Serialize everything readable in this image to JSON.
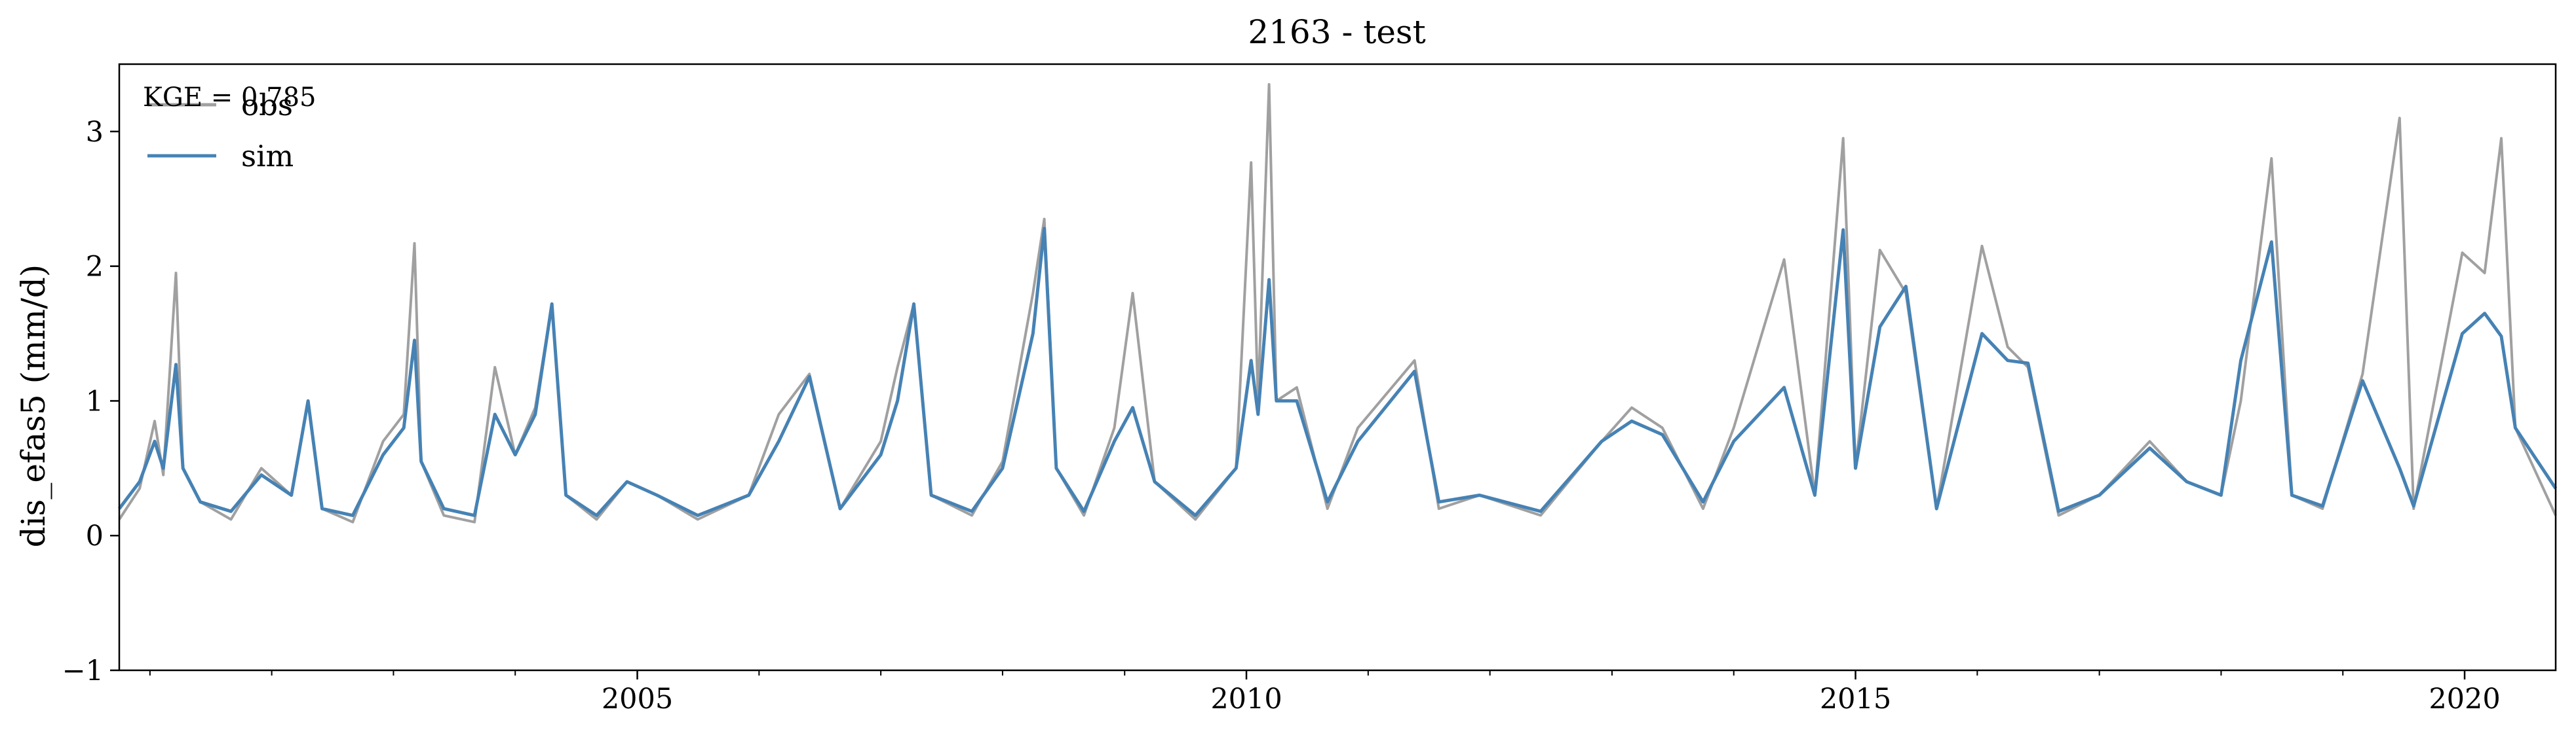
{
  "chart_data": {
    "type": "line",
    "title": "2163 - test",
    "xlabel": "",
    "ylabel": "dis_efas5 (mm/d)",
    "xlim": [
      "2000-10-01",
      "2020-09-30"
    ],
    "ylim": [
      -1,
      3.5
    ],
    "y_ticks": [
      "−1",
      "0",
      "1",
      "2",
      "3"
    ],
    "x_ticks": [
      "2005",
      "2010",
      "2015",
      "2020"
    ],
    "grid": false,
    "legend": {
      "placement": "top-left",
      "entries": [
        "obs",
        "sim"
      ]
    },
    "annotation": "KGE = 0.785",
    "series": [
      {
        "name": "obs",
        "color": "#a0a0a0",
        "points": [
          [
            "2000-10-01",
            0.12
          ],
          [
            "2000-12-01",
            0.35
          ],
          [
            "2001-01-15",
            0.85
          ],
          [
            "2001-02-10",
            0.45
          ],
          [
            "2001-03-20",
            1.95
          ],
          [
            "2001-04-10",
            0.5
          ],
          [
            "2001-06-01",
            0.25
          ],
          [
            "2001-09-01",
            0.12
          ],
          [
            "2001-12-01",
            0.5
          ],
          [
            "2002-03-01",
            0.3
          ],
          [
            "2002-04-20",
            1.0
          ],
          [
            "2002-06-01",
            0.2
          ],
          [
            "2002-09-01",
            0.1
          ],
          [
            "2002-12-01",
            0.7
          ],
          [
            "2003-02-01",
            0.9
          ],
          [
            "2003-03-05",
            2.17
          ],
          [
            "2003-03-25",
            0.55
          ],
          [
            "2003-06-01",
            0.15
          ],
          [
            "2003-09-01",
            0.1
          ],
          [
            "2003-11-01",
            1.25
          ],
          [
            "2004-01-01",
            0.6
          ],
          [
            "2004-03-01",
            0.95
          ],
          [
            "2004-04-20",
            1.72
          ],
          [
            "2004-06-01",
            0.3
          ],
          [
            "2004-09-01",
            0.12
          ],
          [
            "2004-12-01",
            0.4
          ],
          [
            "2005-03-01",
            0.3
          ],
          [
            "2005-07-01",
            0.12
          ],
          [
            "2005-12-01",
            0.3
          ],
          [
            "2006-03-01",
            0.9
          ],
          [
            "2006-06-01",
            1.2
          ],
          [
            "2006-09-01",
            0.2
          ],
          [
            "2007-01-01",
            0.7
          ],
          [
            "2007-02-20",
            1.25
          ],
          [
            "2007-04-10",
            1.72
          ],
          [
            "2007-06-01",
            0.3
          ],
          [
            "2007-10-01",
            0.15
          ],
          [
            "2008-01-01",
            0.55
          ],
          [
            "2008-04-01",
            1.8
          ],
          [
            "2008-05-05",
            2.35
          ],
          [
            "2008-06-10",
            0.5
          ],
          [
            "2008-09-01",
            0.15
          ],
          [
            "2008-12-01",
            0.8
          ],
          [
            "2009-01-25",
            1.8
          ],
          [
            "2009-04-01",
            0.4
          ],
          [
            "2009-08-01",
            0.12
          ],
          [
            "2009-12-01",
            0.5
          ],
          [
            "2010-01-15",
            2.77
          ],
          [
            "2010-02-05",
            1.0
          ],
          [
            "2010-03-10",
            3.35
          ],
          [
            "2010-04-01",
            1.0
          ],
          [
            "2010-06-01",
            1.1
          ],
          [
            "2010-09-01",
            0.2
          ],
          [
            "2010-12-01",
            0.8
          ],
          [
            "2011-05-20",
            1.3
          ],
          [
            "2011-08-01",
            0.2
          ],
          [
            "2011-12-01",
            0.3
          ],
          [
            "2012-06-01",
            0.15
          ],
          [
            "2012-12-01",
            0.7
          ],
          [
            "2013-03-01",
            0.95
          ],
          [
            "2013-06-01",
            0.8
          ],
          [
            "2013-10-01",
            0.2
          ],
          [
            "2014-01-01",
            0.8
          ],
          [
            "2014-06-01",
            2.05
          ],
          [
            "2014-09-01",
            0.3
          ],
          [
            "2014-11-25",
            2.95
          ],
          [
            "2015-01-01",
            0.5
          ],
          [
            "2015-03-15",
            2.12
          ],
          [
            "2015-06-01",
            1.8
          ],
          [
            "2015-09-01",
            0.2
          ],
          [
            "2016-01-15",
            2.15
          ],
          [
            "2016-04-01",
            1.4
          ],
          [
            "2016-06-01",
            1.25
          ],
          [
            "2016-09-01",
            0.15
          ],
          [
            "2017-01-01",
            0.3
          ],
          [
            "2017-06-01",
            0.7
          ],
          [
            "2017-09-20",
            0.4
          ],
          [
            "2018-01-01",
            0.3
          ],
          [
            "2018-03-01",
            1.0
          ],
          [
            "2018-06-01",
            2.8
          ],
          [
            "2018-08-01",
            0.3
          ],
          [
            "2018-11-01",
            0.2
          ],
          [
            "2019-03-01",
            1.2
          ],
          [
            "2019-06-20",
            3.1
          ],
          [
            "2019-08-01",
            0.2
          ],
          [
            "2019-12-25",
            2.1
          ],
          [
            "2020-03-01",
            1.95
          ],
          [
            "2020-04-20",
            2.95
          ],
          [
            "2020-06-01",
            0.8
          ],
          [
            "2020-09-30",
            0.15
          ]
        ]
      },
      {
        "name": "sim",
        "color": "#4682b4",
        "points": [
          [
            "2000-10-01",
            0.2
          ],
          [
            "2000-12-01",
            0.4
          ],
          [
            "2001-01-15",
            0.7
          ],
          [
            "2001-02-10",
            0.5
          ],
          [
            "2001-03-20",
            1.27
          ],
          [
            "2001-04-10",
            0.5
          ],
          [
            "2001-06-01",
            0.25
          ],
          [
            "2001-09-01",
            0.18
          ],
          [
            "2001-12-01",
            0.45
          ],
          [
            "2002-03-01",
            0.3
          ],
          [
            "2002-04-20",
            1.0
          ],
          [
            "2002-06-01",
            0.2
          ],
          [
            "2002-09-01",
            0.15
          ],
          [
            "2002-12-01",
            0.6
          ],
          [
            "2003-02-01",
            0.8
          ],
          [
            "2003-03-05",
            1.45
          ],
          [
            "2003-03-25",
            0.55
          ],
          [
            "2003-06-01",
            0.2
          ],
          [
            "2003-09-01",
            0.15
          ],
          [
            "2003-11-01",
            0.9
          ],
          [
            "2004-01-01",
            0.6
          ],
          [
            "2004-03-01",
            0.9
          ],
          [
            "2004-04-20",
            1.72
          ],
          [
            "2004-06-01",
            0.3
          ],
          [
            "2004-09-01",
            0.15
          ],
          [
            "2004-12-01",
            0.4
          ],
          [
            "2005-03-01",
            0.3
          ],
          [
            "2005-07-01",
            0.15
          ],
          [
            "2005-12-01",
            0.3
          ],
          [
            "2006-03-01",
            0.7
          ],
          [
            "2006-06-01",
            1.18
          ],
          [
            "2006-09-01",
            0.2
          ],
          [
            "2007-01-01",
            0.6
          ],
          [
            "2007-02-20",
            1.0
          ],
          [
            "2007-04-10",
            1.72
          ],
          [
            "2007-06-01",
            0.3
          ],
          [
            "2007-10-01",
            0.18
          ],
          [
            "2008-01-01",
            0.5
          ],
          [
            "2008-04-01",
            1.5
          ],
          [
            "2008-05-05",
            2.28
          ],
          [
            "2008-06-10",
            0.5
          ],
          [
            "2008-09-01",
            0.18
          ],
          [
            "2008-12-01",
            0.7
          ],
          [
            "2009-01-25",
            0.95
          ],
          [
            "2009-04-01",
            0.4
          ],
          [
            "2009-08-01",
            0.15
          ],
          [
            "2009-12-01",
            0.5
          ],
          [
            "2010-01-15",
            1.3
          ],
          [
            "2010-02-05",
            0.9
          ],
          [
            "2010-03-10",
            1.9
          ],
          [
            "2010-04-01",
            1.0
          ],
          [
            "2010-06-01",
            1.0
          ],
          [
            "2010-09-01",
            0.25
          ],
          [
            "2010-12-01",
            0.7
          ],
          [
            "2011-05-20",
            1.22
          ],
          [
            "2011-08-01",
            0.25
          ],
          [
            "2011-12-01",
            0.3
          ],
          [
            "2012-06-01",
            0.18
          ],
          [
            "2012-12-01",
            0.7
          ],
          [
            "2013-03-01",
            0.85
          ],
          [
            "2013-06-01",
            0.75
          ],
          [
            "2013-10-01",
            0.25
          ],
          [
            "2014-01-01",
            0.7
          ],
          [
            "2014-06-01",
            1.1
          ],
          [
            "2014-09-01",
            0.3
          ],
          [
            "2014-11-25",
            2.27
          ],
          [
            "2015-01-01",
            0.5
          ],
          [
            "2015-03-15",
            1.55
          ],
          [
            "2015-06-01",
            1.85
          ],
          [
            "2015-09-01",
            0.2
          ],
          [
            "2016-01-15",
            1.5
          ],
          [
            "2016-04-01",
            1.3
          ],
          [
            "2016-06-01",
            1.28
          ],
          [
            "2016-09-01",
            0.18
          ],
          [
            "2017-01-01",
            0.3
          ],
          [
            "2017-06-01",
            0.65
          ],
          [
            "2017-09-20",
            0.4
          ],
          [
            "2018-01-01",
            0.3
          ],
          [
            "2018-03-01",
            1.3
          ],
          [
            "2018-06-01",
            2.18
          ],
          [
            "2018-08-01",
            0.3
          ],
          [
            "2018-11-01",
            0.22
          ],
          [
            "2019-03-01",
            1.15
          ],
          [
            "2019-06-20",
            0.5
          ],
          [
            "2019-08-01",
            0.22
          ],
          [
            "2019-12-25",
            1.5
          ],
          [
            "2020-03-01",
            1.65
          ],
          [
            "2020-04-20",
            1.48
          ],
          [
            "2020-06-01",
            0.8
          ],
          [
            "2020-09-30",
            0.35
          ]
        ]
      }
    ]
  }
}
